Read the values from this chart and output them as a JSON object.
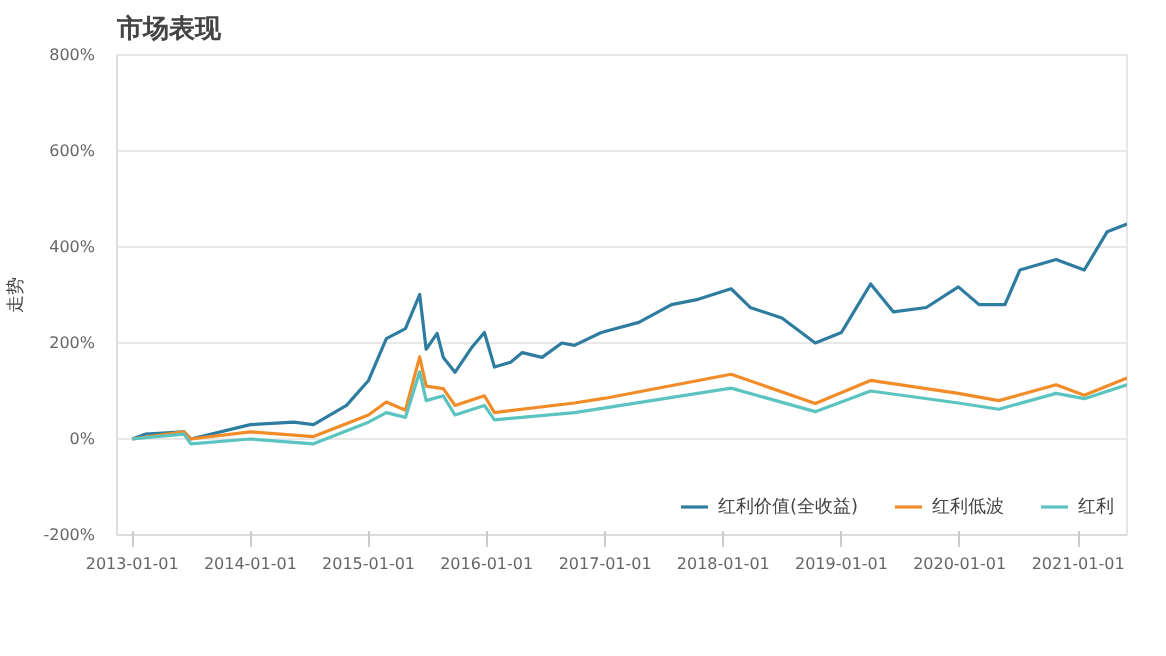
{
  "chart_data": {
    "type": "line",
    "title": "市场表现",
    "ylabel": "走势",
    "xlim": [
      "2012-11-15",
      "2021-06-01"
    ],
    "xticks": [
      "2013-01-01",
      "2014-01-01",
      "2015-01-01",
      "2016-01-01",
      "2017-01-01",
      "2018-01-01",
      "2019-01-01",
      "2020-01-01",
      "2021-01-01"
    ],
    "ylim": [
      -200,
      800
    ],
    "yticks": [
      {
        "value": -200,
        "label": "-200%"
      },
      {
        "value": 0,
        "label": "0%"
      },
      {
        "value": 200,
        "label": "200%"
      },
      {
        "value": 400,
        "label": "400%"
      },
      {
        "value": 600,
        "label": "600%"
      },
      {
        "value": 800,
        "label": "800%"
      }
    ],
    "grid": "y",
    "legend": "bottom",
    "marker": "none",
    "line_style": "solid",
    "series": [
      {
        "name": "红利价值(全收益)",
        "color": "#2e7ca0",
        "x": [
          "2013-01-01",
          "2013-02-10",
          "2013-06-10",
          "2013-07-01",
          "2014-01-01",
          "2014-05-15",
          "2014-07-15",
          "2014-10-25",
          "2015-01-01",
          "2015-02-25",
          "2015-04-25",
          "2015-06-08",
          "2015-06-28",
          "2015-08-01",
          "2015-08-20",
          "2015-09-25",
          "2015-11-15",
          "2015-12-25",
          "2016-01-25",
          "2016-03-15",
          "2016-04-20",
          "2016-06-20",
          "2016-08-20",
          "2016-09-28",
          "2016-12-20",
          "2017-04-15",
          "2017-07-25",
          "2017-10-15",
          "2018-01-25",
          "2018-03-25",
          "2018-07-01",
          "2018-10-12",
          "2019-01-01",
          "2019-04-01",
          "2019-06-10",
          "2019-09-20",
          "2019-12-28",
          "2020-03-01",
          "2020-05-20",
          "2020-07-05",
          "2020-10-25",
          "2021-01-20",
          "2021-04-01",
          "2021-06-01"
        ],
        "values": [
          0,
          10,
          15,
          0,
          30,
          35,
          30,
          70,
          122,
          209,
          230,
          301,
          187,
          220,
          170,
          139,
          190,
          222,
          150,
          160,
          180,
          170,
          200,
          195,
          222,
          243,
          280,
          291,
          313,
          274,
          252,
          200,
          222,
          323,
          265,
          274,
          317,
          280,
          280,
          352,
          374,
          352,
          432,
          448
        ]
      },
      {
        "name": "红利低波",
        "color": "#f28c28",
        "x": [
          "2013-01-01",
          "2013-06-10",
          "2013-07-01",
          "2014-01-01",
          "2014-07-15",
          "2015-01-01",
          "2015-02-25",
          "2015-04-25",
          "2015-06-08",
          "2015-06-28",
          "2015-08-20",
          "2015-09-25",
          "2015-12-25",
          "2016-01-25",
          "2016-09-28",
          "2017-01-01",
          "2018-01-25",
          "2018-10-12",
          "2019-04-01",
          "2019-12-28",
          "2020-05-01",
          "2020-10-25",
          "2021-01-20",
          "2021-06-01"
        ],
        "values": [
          0,
          15,
          0,
          15,
          5,
          50,
          77,
          60,
          171,
          110,
          105,
          70,
          90,
          55,
          75,
          85,
          135,
          74,
          122,
          95,
          80,
          113,
          91,
          127
        ]
      },
      {
        "name": "红利",
        "color": "#5bc4c0",
        "x": [
          "2013-01-01",
          "2013-06-10",
          "2013-07-01",
          "2014-01-01",
          "2014-07-15",
          "2015-01-01",
          "2015-02-25",
          "2015-04-25",
          "2015-06-08",
          "2015-06-28",
          "2015-08-20",
          "2015-09-25",
          "2015-12-25",
          "2016-01-25",
          "2016-09-28",
          "2017-01-01",
          "2018-01-25",
          "2018-10-12",
          "2019-04-01",
          "2019-12-28",
          "2020-05-01",
          "2020-10-25",
          "2021-01-20",
          "2021-06-01"
        ],
        "values": [
          0,
          10,
          -10,
          0,
          -10,
          35,
          55,
          45,
          140,
          80,
          90,
          50,
          70,
          40,
          55,
          65,
          106,
          57,
          100,
          75,
          62,
          95,
          84,
          113
        ]
      }
    ]
  }
}
